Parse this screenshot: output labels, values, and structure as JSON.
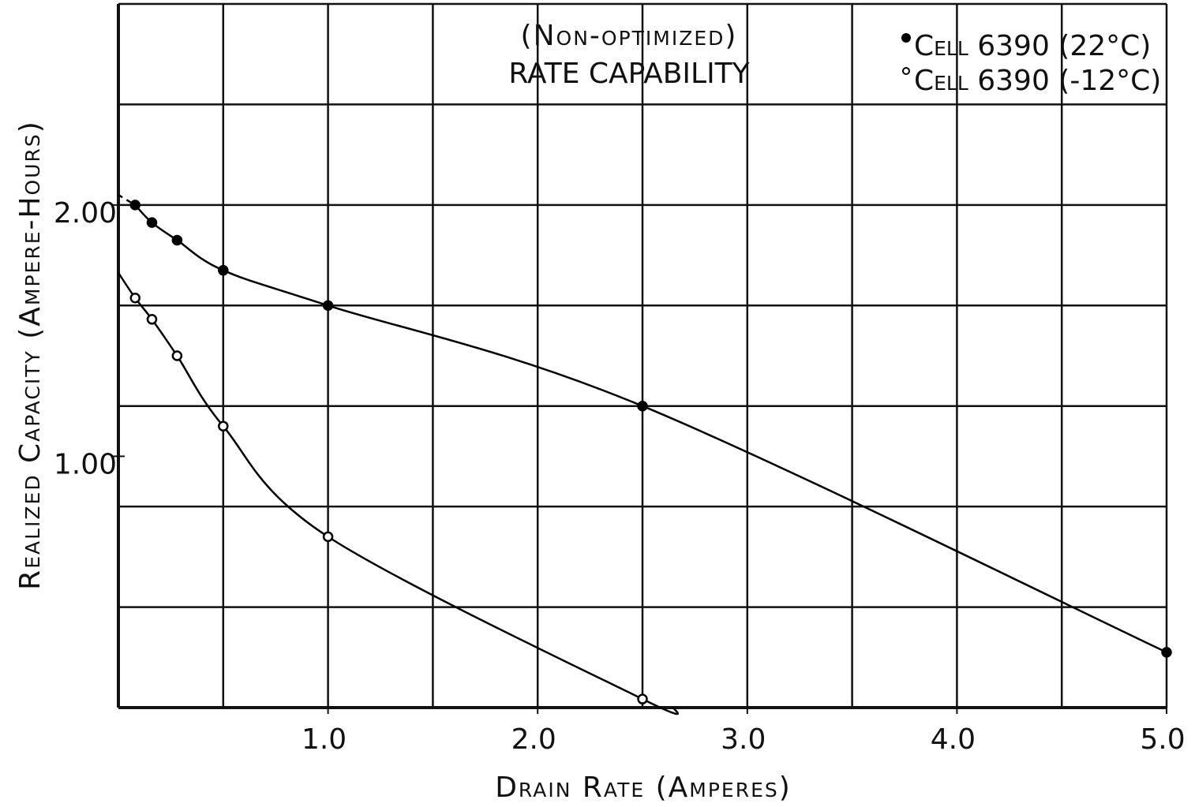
{
  "chart_data": {
    "type": "line",
    "title": "(Non-optimized)",
    "subtitle": "RATE CAPABILITY",
    "x_label": "Drain Rate (Amperes)",
    "y_label": "Realized Capacity (Ampere-Hours)",
    "xlim": [
      0,
      5
    ],
    "ylim": [
      0,
      2.8
    ],
    "xticks": [
      {
        "value": 1,
        "label": "1.0"
      },
      {
        "value": 2,
        "label": "2.0"
      },
      {
        "value": 3,
        "label": "3.0"
      },
      {
        "value": 4,
        "label": "4.0"
      },
      {
        "value": 5,
        "label": "5.0"
      }
    ],
    "yticks": [
      {
        "value": 1,
        "label": "1.00"
      },
      {
        "value": 2,
        "label": "2.00"
      }
    ],
    "xgrid": [
      0.5,
      1,
      1.5,
      2,
      2.5,
      3,
      3.5,
      4,
      4.5,
      5
    ],
    "ygrid": [
      0.4,
      0.8,
      1.2,
      1.6,
      2.0,
      2.4,
      2.8
    ],
    "grid": true,
    "legend": "upper right",
    "series": [
      {
        "name": "Cell 6390 (22°C)",
        "color": "#000000",
        "marker": "filled",
        "x": [
          0.08,
          0.16,
          0.28,
          0.5,
          1.0,
          2.5,
          5.0
        ],
        "values": [
          2.0,
          1.93,
          1.86,
          1.74,
          1.6,
          1.2,
          0.22
        ],
        "lead": {
          "x": 0,
          "y": 2.04,
          "dashed": true
        }
      },
      {
        "name": "Cell 6390 (-12°C)",
        "color": "#000000",
        "marker": "open",
        "x": [
          0.08,
          0.16,
          0.28,
          0.5,
          1.0,
          2.5
        ],
        "values": [
          1.63,
          1.545,
          1.4,
          1.12,
          0.68,
          0.034
        ],
        "lead": {
          "x": 0,
          "y": 1.73,
          "dashed": false
        },
        "tail": {
          "x": 2.65,
          "y": 0
        }
      }
    ]
  }
}
